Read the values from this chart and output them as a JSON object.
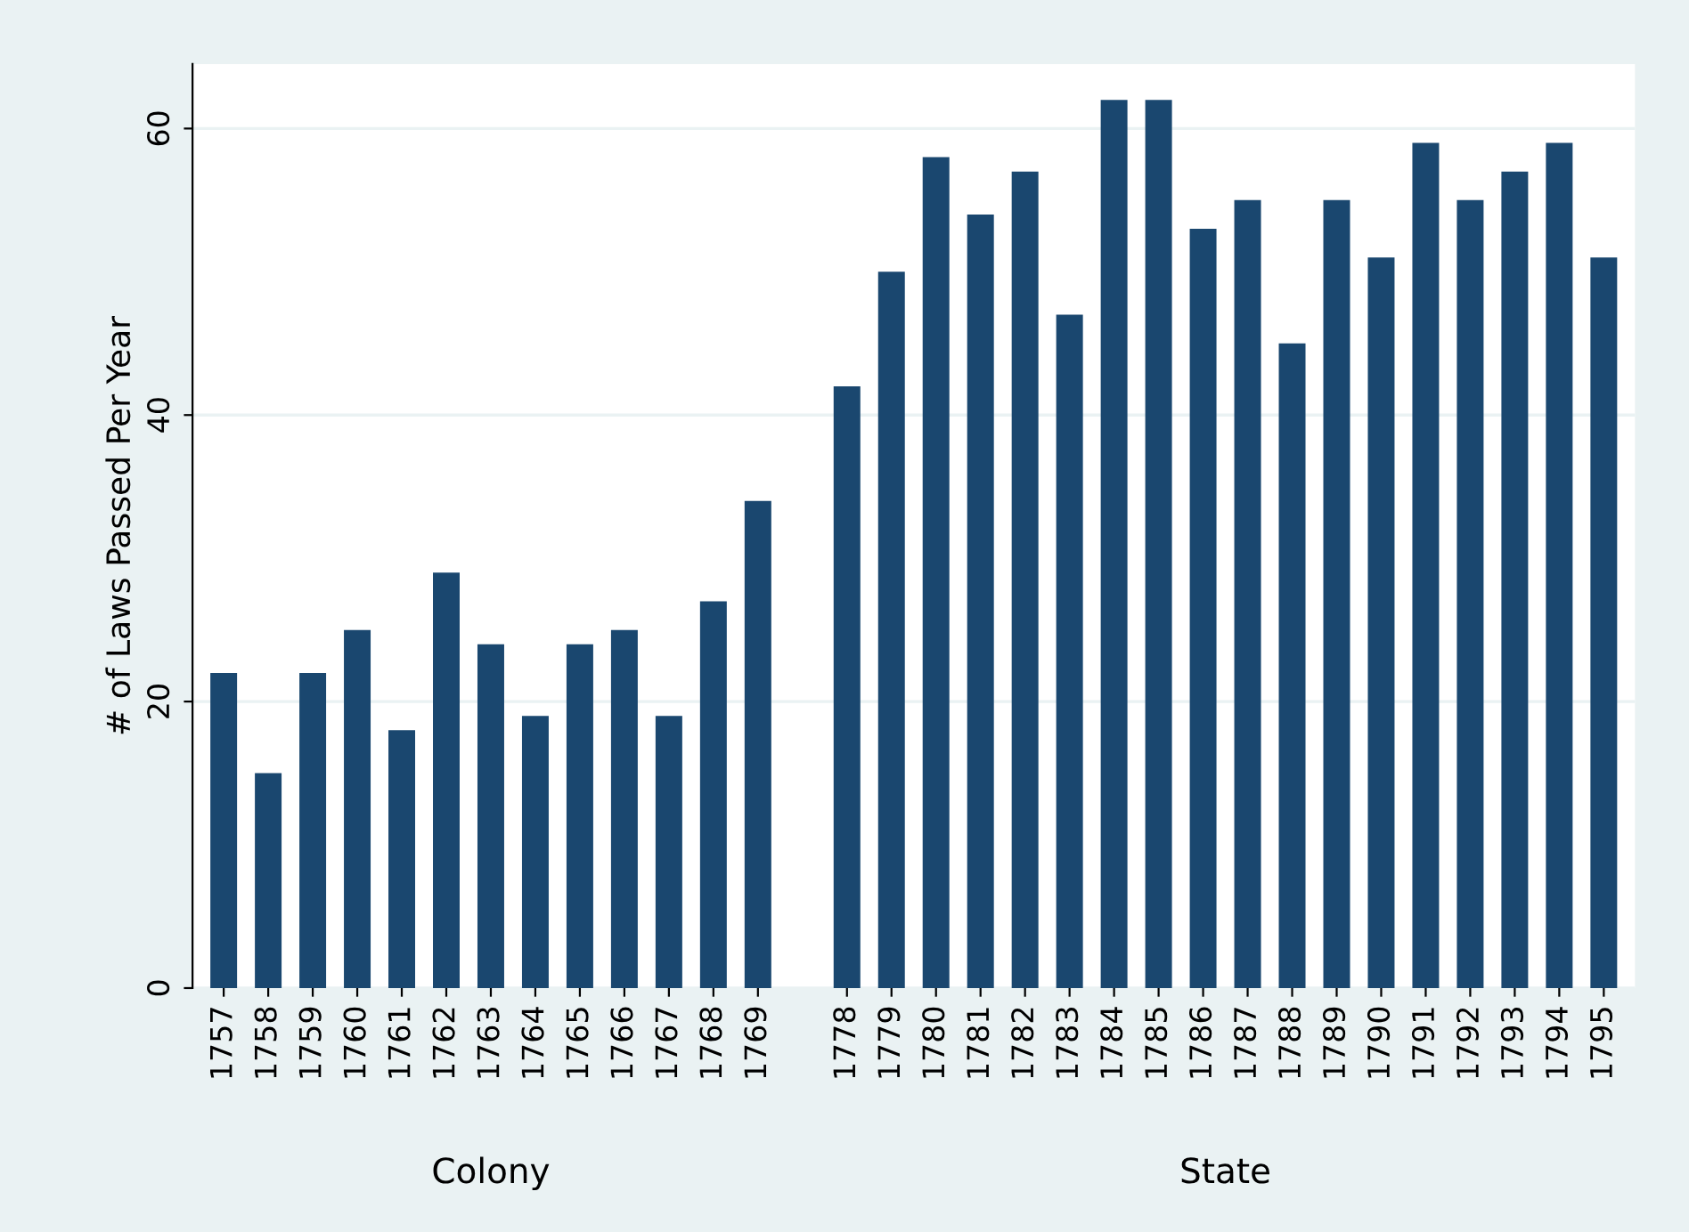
{
  "chart_data": {
    "type": "bar",
    "ylabel": "# of Laws Passed Per Year",
    "categories": [
      "1757",
      "1758",
      "1759",
      "1760",
      "1761",
      "1762",
      "1763",
      "1764",
      "1765",
      "1766",
      "1767",
      "1768",
      "1769",
      null,
      "1778",
      "1779",
      "1780",
      "1781",
      "1782",
      "1783",
      "1784",
      "1785",
      "1786",
      "1787",
      "1788",
      "1789",
      "1790",
      "1791",
      "1792",
      "1793",
      "1794",
      "1795"
    ],
    "values": [
      22,
      15,
      22,
      25,
      18,
      29,
      24,
      19,
      24,
      25,
      19,
      27,
      34,
      null,
      42,
      50,
      58,
      54,
      57,
      47,
      62,
      62,
      53,
      55,
      45,
      55,
      51,
      59,
      55,
      57,
      59,
      51
    ],
    "color": "#1a476f",
    "ylim": [
      0,
      64.5
    ],
    "yticks": [
      0,
      20,
      40,
      60
    ],
    "grid": "y",
    "annotations": [
      "Colony",
      "State"
    ]
  }
}
